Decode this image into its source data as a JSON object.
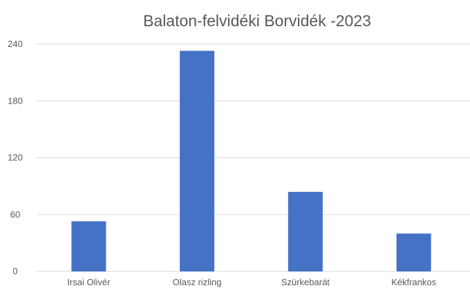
{
  "chart_data": {
    "type": "bar",
    "title": "Balaton-felvidéki Borvidék -2023",
    "xlabel": "",
    "ylabel": "",
    "categories": [
      "Irsai Olivér",
      "Olasz rizling",
      "Szürkebarát",
      "Kékfrankos"
    ],
    "values": [
      53,
      233,
      84,
      40
    ],
    "ylim": [
      0,
      240
    ],
    "yticks": [
      "0",
      "60",
      "120",
      "180",
      "240"
    ],
    "grid": true,
    "legend": "none",
    "bar_color": "#4472c4"
  }
}
